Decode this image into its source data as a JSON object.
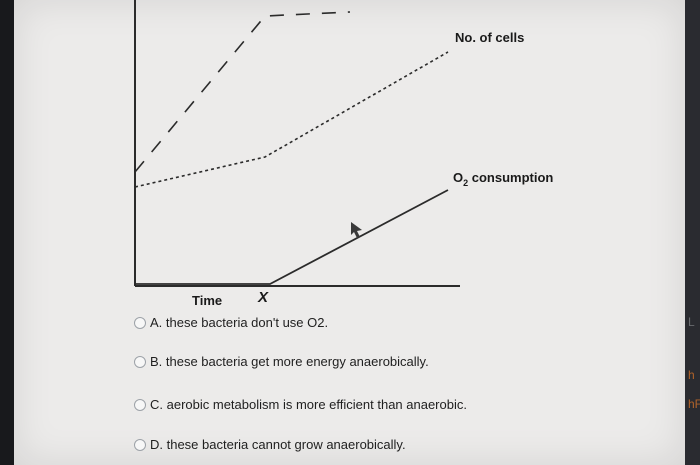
{
  "chart_data": {
    "type": "line",
    "xlabel": "Time",
    "x_marker": "X",
    "series": [
      {
        "name": "No. of cells",
        "style": "dashed"
      },
      {
        "name": "O2 consumption",
        "style": "solid"
      }
    ],
    "labels": {
      "cells": "No. of cells",
      "o2_main": "O",
      "o2_sub": "2",
      "o2_rest": " consumption"
    }
  },
  "options": [
    {
      "label": "A. these bacteria don't use O2."
    },
    {
      "label": "B. these bacteria get more energy anaerobically."
    },
    {
      "label": "C. aerobic metabolism is more efficient than anaerobic."
    },
    {
      "label": "D. these bacteria cannot grow anaerobically."
    }
  ],
  "edge_text": {
    "a": "L",
    "b": "h",
    "c": "hF"
  }
}
